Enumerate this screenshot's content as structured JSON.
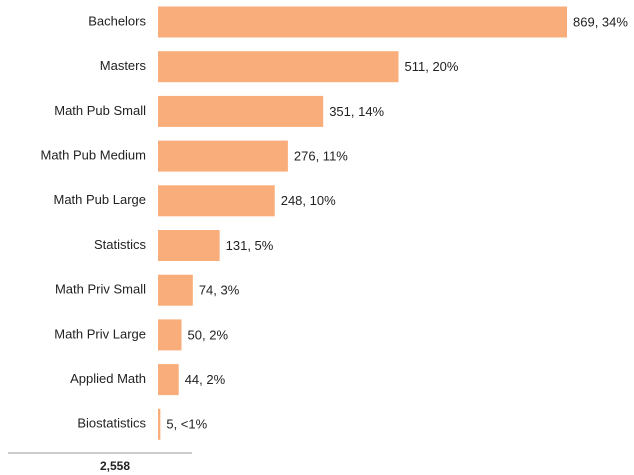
{
  "chart_data": {
    "type": "barh",
    "categories": [
      "Bachelors",
      "Masters",
      "Math Pub Small",
      "Math Pub Medium",
      "Math Pub Large",
      "Statistics",
      "Math Priv Small",
      "Math Priv Large",
      "Applied Math",
      "Biostatistics"
    ],
    "values": [
      869,
      511,
      351,
      276,
      248,
      131,
      74,
      50,
      44,
      5
    ],
    "value_labels": [
      "869, 34%",
      "511, 20%",
      "351, 14%",
      "276, 11%",
      "248, 10%",
      "131, 5%",
      "74, 3%",
      "50, 2%",
      "44, 2%",
      "5, <1%"
    ],
    "color": "#f9ad7a",
    "annotations": [
      {
        "text": "2,558"
      }
    ]
  }
}
